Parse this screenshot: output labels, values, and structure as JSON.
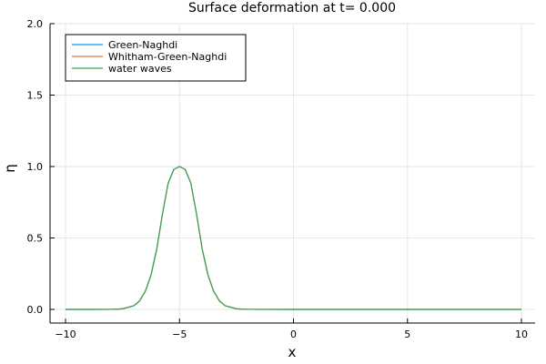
{
  "chart_data": {
    "type": "line",
    "title": "Surface deformation at t=   0.000",
    "xlabel": "x",
    "ylabel": "η",
    "xlim": [
      -11,
      10.6
    ],
    "ylim": [
      -0.1,
      2.0
    ],
    "xticks": [
      -10,
      -5,
      0,
      5,
      10
    ],
    "xtick_labels": [
      "−10",
      "−5",
      "0",
      "5",
      "10"
    ],
    "yticks": [
      0,
      0.5,
      1,
      1.5,
      2
    ],
    "ytick_labels": [
      "0.0",
      "0.5",
      "1.0",
      "1.5",
      "2.0"
    ],
    "grid": true,
    "legend_position": "top-left",
    "series": [
      {
        "name": "Green-Naghdi",
        "color": "#009AFA",
        "x": [
          -10,
          -9,
          -8,
          -7.5,
          -7,
          -6.75,
          -6.5,
          -6.25,
          -6,
          -5.75,
          -5.5,
          -5.25,
          -5,
          -4.75,
          -4.5,
          -4.25,
          -4,
          -3.75,
          -3.5,
          -3.25,
          -3,
          -2.5,
          -2,
          0,
          5,
          10
        ],
        "y": [
          0,
          0,
          0.0004,
          0.0039,
          0.026,
          0.0598,
          0.1259,
          0.2408,
          0.4198,
          0.6652,
          0.8825,
          0.9794,
          1,
          0.9794,
          0.8825,
          0.6652,
          0.4198,
          0.2408,
          0.1259,
          0.0598,
          0.026,
          0.0039,
          0.0004,
          0,
          0,
          0
        ]
      },
      {
        "name": "Whitham-Green-Naghdi",
        "color": "#E36F47",
        "x": [
          -10,
          -9,
          -8,
          -7.5,
          -7,
          -6.75,
          -6.5,
          -6.25,
          -6,
          -5.75,
          -5.5,
          -5.25,
          -5,
          -4.75,
          -4.5,
          -4.25,
          -4,
          -3.75,
          -3.5,
          -3.25,
          -3,
          -2.5,
          -2,
          0,
          5,
          10
        ],
        "y": [
          0,
          0,
          0.0004,
          0.0039,
          0.026,
          0.0598,
          0.1259,
          0.2408,
          0.4198,
          0.6652,
          0.8825,
          0.9794,
          1,
          0.9794,
          0.8825,
          0.6652,
          0.4198,
          0.2408,
          0.1259,
          0.0598,
          0.026,
          0.0039,
          0.0004,
          0,
          0,
          0
        ]
      },
      {
        "name": "water waves",
        "color": "#3EA44E",
        "x": [
          -10,
          -9,
          -8,
          -7.5,
          -7,
          -6.75,
          -6.5,
          -6.25,
          -6,
          -5.75,
          -5.5,
          -5.25,
          -5,
          -4.75,
          -4.5,
          -4.25,
          -4,
          -3.75,
          -3.5,
          -3.25,
          -3,
          -2.5,
          -2,
          0,
          5,
          10
        ],
        "y": [
          0,
          0,
          0.0004,
          0.0039,
          0.026,
          0.0598,
          0.1259,
          0.2408,
          0.4198,
          0.6652,
          0.8825,
          0.9794,
          1,
          0.9794,
          0.8825,
          0.6652,
          0.4198,
          0.2408,
          0.1259,
          0.0598,
          0.026,
          0.0039,
          0.0004,
          0,
          0,
          0
        ]
      }
    ]
  }
}
